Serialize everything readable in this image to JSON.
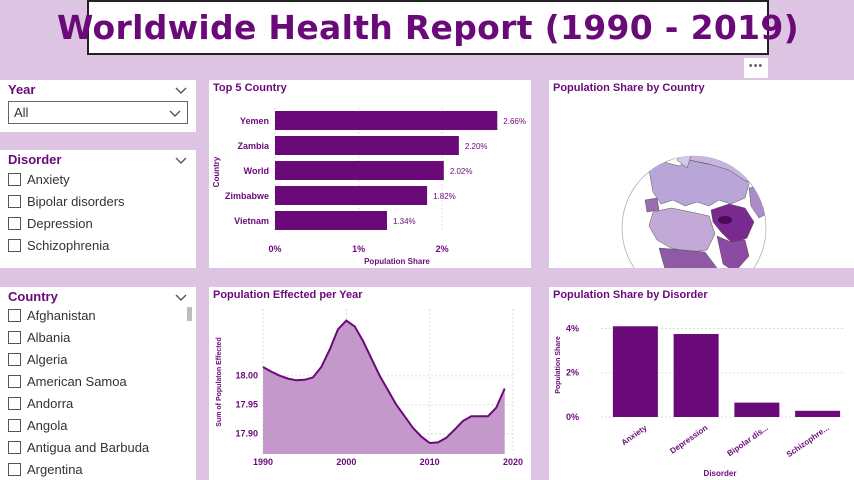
{
  "report": {
    "title": "Worldwide Health Report (1990 - 2019)",
    "more_label": "•••"
  },
  "slicers": {
    "year": {
      "title": "Year",
      "selected": "All"
    },
    "disorder": {
      "title": "Disorder",
      "items": [
        "Anxiety",
        "Bipolar disorders",
        "Depression",
        "Schizophrenia"
      ]
    },
    "country": {
      "title": "Country",
      "items": [
        "Afghanistan",
        "Albania",
        "Algeria",
        "American Samoa",
        "Andorra",
        "Angola",
        "Antigua and Barbuda",
        "Argentina"
      ]
    }
  },
  "visuals": {
    "top5": {
      "title": "Top 5 Country"
    },
    "map": {
      "title": "Population Share by Country"
    },
    "year": {
      "title": "Population Effected per Year"
    },
    "disorder": {
      "title": "Population Share by Disorder"
    }
  },
  "colors": {
    "accent": "#6a0a78",
    "area_fill": "#c192c8",
    "background": "#dcc4e2"
  },
  "chart_data": [
    {
      "type": "bar",
      "orientation": "horizontal",
      "title": "Top 5 Country",
      "xlabel": "Population Share",
      "ylabel": "Country",
      "categories": [
        "Yemen",
        "Zambia",
        "World",
        "Zimbabwe",
        "Vietnam"
      ],
      "values": [
        2.66,
        2.2,
        2.02,
        1.82,
        1.34
      ],
      "data_labels": [
        "2.66%",
        "2.20%",
        "2.02%",
        "1.82%",
        "1.34%"
      ],
      "xticks": [
        "0%",
        "1%",
        "2%"
      ],
      "xlim": [
        0,
        2.8
      ]
    },
    {
      "type": "area",
      "title": "Population Effected per Year",
      "xlabel": "",
      "ylabel": "Sum of Populaton Effected",
      "x": [
        1990,
        1991,
        1992,
        1993,
        1994,
        1995,
        1996,
        1997,
        1998,
        1999,
        2000,
        2001,
        2002,
        2003,
        2004,
        2005,
        2006,
        2007,
        2008,
        2009,
        2010,
        2011,
        2012,
        2013,
        2014,
        2015,
        2016,
        2017,
        2018,
        2019
      ],
      "y": [
        18.015,
        18.007,
        18.0,
        17.995,
        17.992,
        17.993,
        17.997,
        18.015,
        18.045,
        18.08,
        18.095,
        18.085,
        18.06,
        18.03,
        18.0,
        17.975,
        17.95,
        17.93,
        17.91,
        17.895,
        17.884,
        17.885,
        17.893,
        17.907,
        17.922,
        17.93,
        17.93,
        17.93,
        17.945,
        17.978
      ],
      "xticks": [
        1990,
        2000,
        2010,
        2020
      ],
      "yticks": [
        "17.90",
        "17.95",
        "18.00"
      ],
      "ylim": [
        17.865,
        18.115
      ],
      "xlim": [
        1990,
        2020
      ]
    },
    {
      "type": "bar",
      "title": "Population Share by Disorder",
      "xlabel": "Disorder",
      "ylabel": "Population Share",
      "categories": [
        "Anxiety",
        "Depression",
        "Bipolar dis...",
        "Schizophre..."
      ],
      "values": [
        4.1,
        3.75,
        0.65,
        0.28
      ],
      "yticks": [
        "0%",
        "2%",
        "4%"
      ],
      "ylim": [
        0,
        4.7
      ]
    }
  ]
}
